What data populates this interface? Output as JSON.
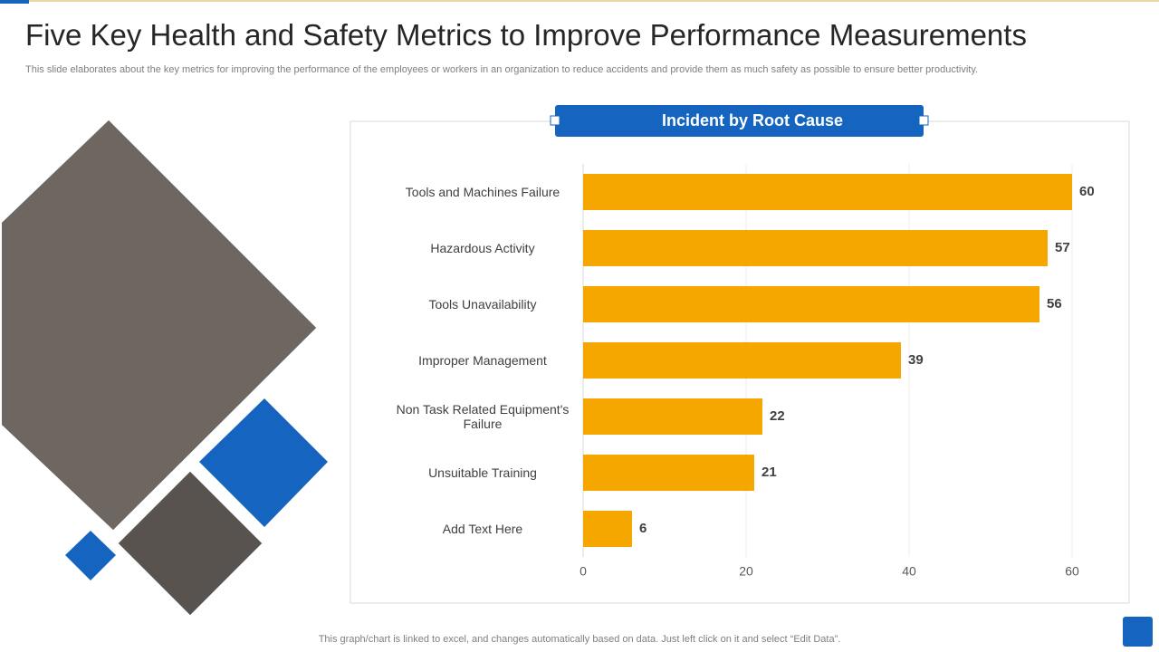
{
  "title": "Five Key Health and Safety Metrics to Improve Performance Measurements",
  "subtitle": "This slide elaborates about the key metrics  for improving the performance of the employees or workers  in an organization to reduce accidents and provide them as much safety as possible  to ensure better productivity.",
  "footnote": "This graph/chart is linked to excel,  and changes automatically based on data. Just left click on it and select “Edit Data”.",
  "chart_data": {
    "type": "bar",
    "orientation": "horizontal",
    "title": "Incident by Root Cause",
    "categories": [
      "Tools and Machines Failure",
      "Hazardous Activity",
      "Tools Unavailability",
      "Improper Management",
      "Non Task Related Equipment's Failure",
      "Unsuitable Training",
      "Add Text Here"
    ],
    "values": [
      60,
      57,
      56,
      39,
      22,
      21,
      6
    ],
    "color": "#f5a700",
    "xlim": [
      0,
      60
    ],
    "xticks": [
      0,
      20,
      40,
      60
    ],
    "grid": true
  }
}
